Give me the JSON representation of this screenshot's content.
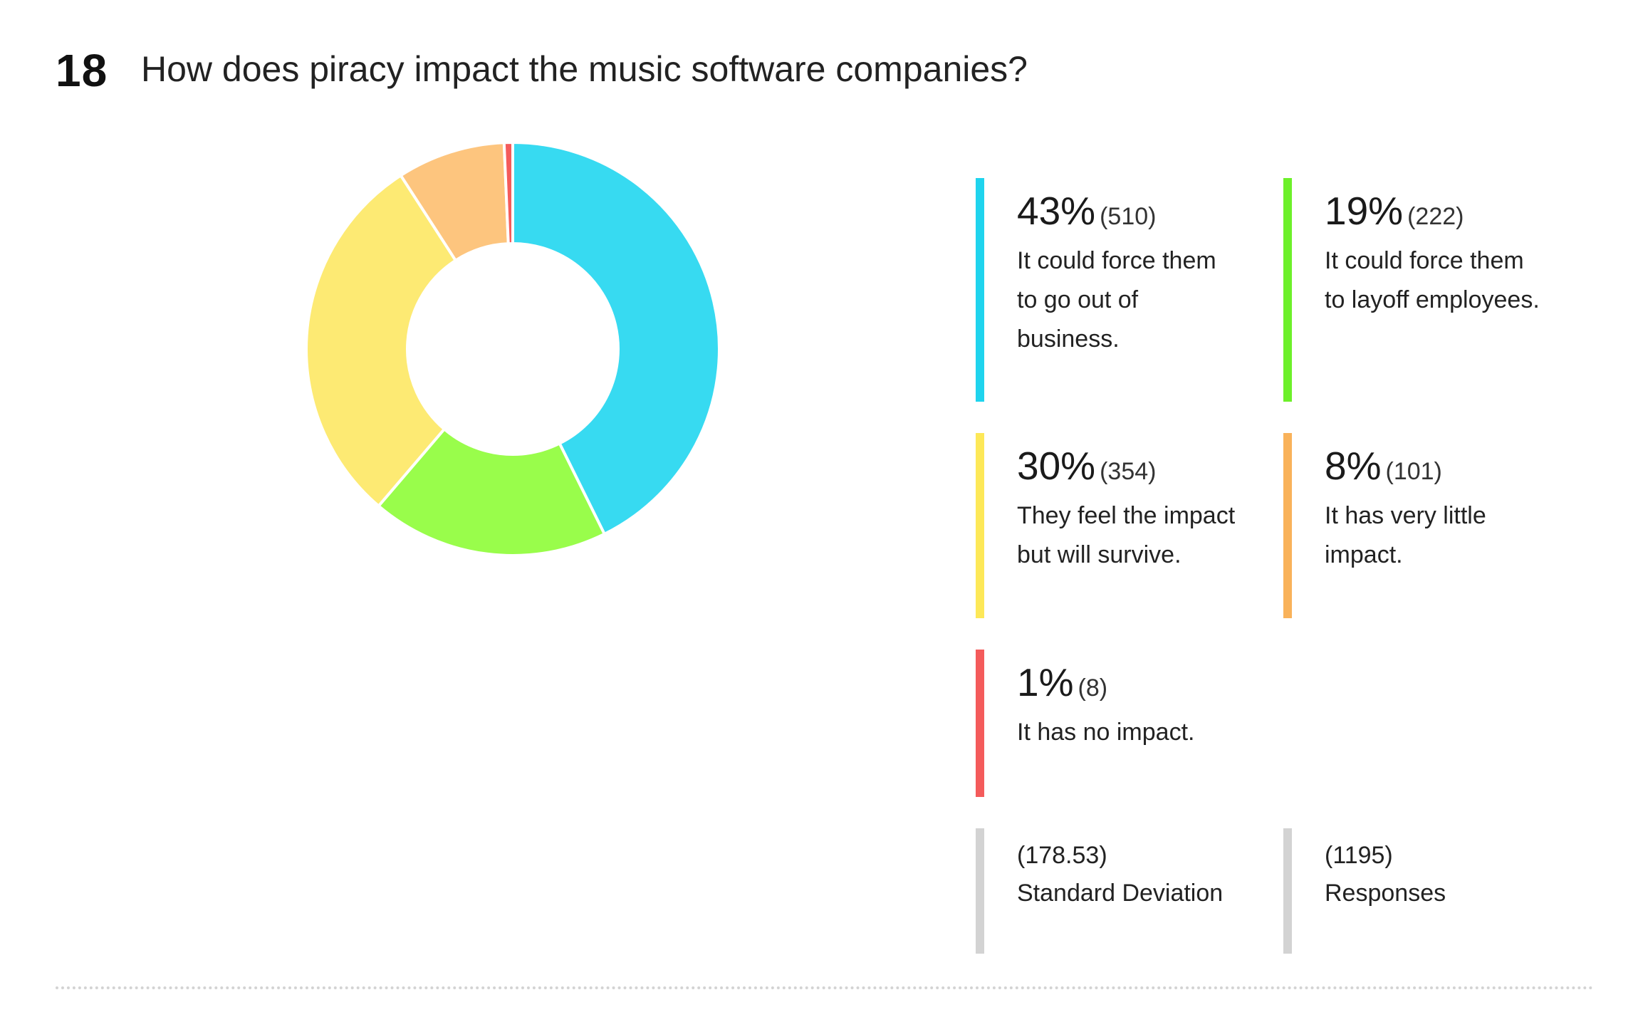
{
  "question": {
    "number": "18",
    "title": "How does piracy impact the music software companies?"
  },
  "chart_data": {
    "type": "pie",
    "style": "donut",
    "total": 1195,
    "slices": [
      {
        "percent": "43%",
        "count": "(510)",
        "value": 510,
        "label": [
          "It could force them",
          "to go out of",
          "business."
        ],
        "color": "#37daf1"
      },
      {
        "percent": "19%",
        "count": "(222)",
        "value": 222,
        "label": [
          "It could force them",
          "to layoff employees."
        ],
        "color": "#99fd4b"
      },
      {
        "percent": "30%",
        "count": "(354)",
        "value": 354,
        "label": [
          "They feel the impact",
          "but will survive."
        ],
        "color": "#fdea73"
      },
      {
        "percent": "8%",
        "count": "(101)",
        "value": 101,
        "label": [
          "It has very little",
          "impact."
        ],
        "color": "#fdc57e"
      },
      {
        "percent": "1%",
        "count": "(8)",
        "value": 8,
        "label": [
          "It has no impact."
        ],
        "color": "#f45b5b"
      }
    ],
    "legend_bar_colors": [
      "#1fd4ee",
      "#6df02a",
      "#fde858",
      "#f9b25a",
      "#f45b5b"
    ]
  },
  "stats": {
    "std_dev_value": "(178.53)",
    "std_dev_label": "Standard Deviation",
    "responses_value": "(1195)",
    "responses_label": "Responses",
    "bar_color": "#d3d3d3"
  }
}
